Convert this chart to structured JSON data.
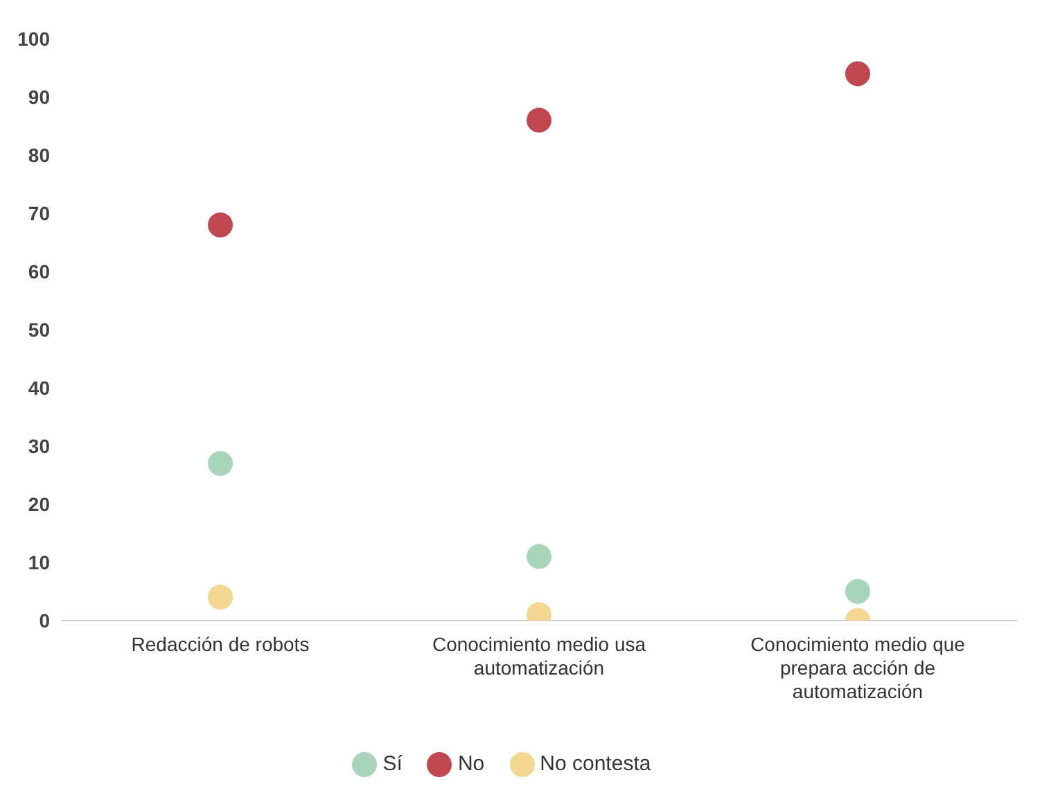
{
  "chart_data": {
    "type": "scatter",
    "categories": [
      "Redacción de robots",
      "Conocimiento medio usa automatización",
      "Conocimiento medio que prepara acción de automatización"
    ],
    "series": [
      {
        "name": "Sí",
        "color": "#a8d4bc",
        "values": [
          27,
          11,
          5
        ]
      },
      {
        "name": "No",
        "color": "#c0464f",
        "values": [
          68,
          86,
          94
        ]
      },
      {
        "name": "No contesta",
        "color": "#f3d68f",
        "values": [
          4,
          1,
          0
        ]
      }
    ],
    "ylim": [
      0,
      100
    ],
    "yticks": [
      0,
      10,
      20,
      30,
      40,
      50,
      60,
      70,
      80,
      90,
      100
    ],
    "legend": "bottom",
    "marker": "circle"
  }
}
